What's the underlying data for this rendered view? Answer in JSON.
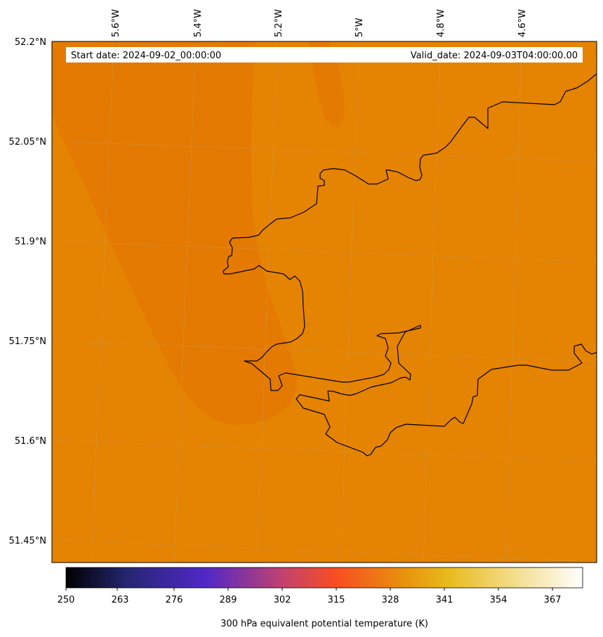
{
  "map": {
    "start_date": "Start date: 2024-09-02_00:00:00",
    "valid_date": "Valid_date: 2024-09-03T04:00:00.00",
    "lon_labels": [
      "5.6°W",
      "5.4°W",
      "5.2°W",
      "5°W",
      "4.8°W",
      "4.6°W"
    ],
    "lat_labels": [
      "52.2°N",
      "52.05°N",
      "51.9°N",
      "51.75°N",
      "51.6°N",
      "51.45°N"
    ],
    "field_colors": {
      "base": "#e58302",
      "darker": "#e47a02",
      "lighter": "#e78702"
    }
  },
  "colorbar": {
    "title": "300 hPa equivalent potential temperature (K)",
    "ticks": [
      "250",
      "263",
      "276",
      "289",
      "302",
      "315",
      "328",
      "341",
      "354",
      "367"
    ],
    "colors": [
      "#000000",
      "#262673",
      "#5028c8",
      "#c2426e",
      "#f74d22",
      "#e8940d",
      "#e8bb1c",
      "#ffffff"
    ]
  }
}
